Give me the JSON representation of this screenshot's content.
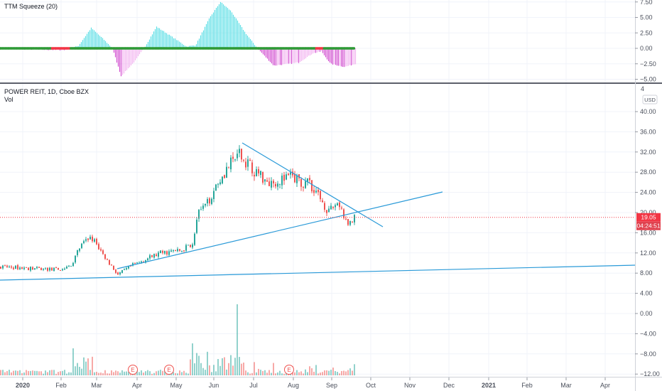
{
  "chart_data": [
    {
      "type": "histogram",
      "title": "TTM Squeeze (20)",
      "ylim": [
        -5.5,
        8.2
      ],
      "yticks": [
        "7.50",
        "5.00",
        "2.50",
        "0.00",
        "−2.50",
        "−5.00"
      ],
      "ytick_values": [
        7.5,
        5,
        2.5,
        0,
        -2.5,
        -5
      ],
      "momentum_profile": [
        [
          0,
          0
        ],
        [
          50,
          -0.2
        ],
        [
          90,
          -0.3
        ],
        [
          110,
          0.4
        ],
        [
          128,
          3.3
        ],
        [
          145,
          1.5
        ],
        [
          158,
          0
        ],
        [
          170,
          -4.5
        ],
        [
          190,
          -2
        ],
        [
          205,
          0.5
        ],
        [
          220,
          3.5
        ],
        [
          240,
          2
        ],
        [
          262,
          0.3
        ],
        [
          275,
          0.5
        ],
        [
          295,
          5
        ],
        [
          310,
          7.5
        ],
        [
          325,
          6
        ],
        [
          345,
          2.5
        ],
        [
          362,
          0
        ],
        [
          385,
          -2.8
        ],
        [
          420,
          -2.3
        ],
        [
          440,
          -0.8
        ],
        [
          452,
          -0.5
        ],
        [
          465,
          -2.5
        ],
        [
          485,
          -3
        ],
        [
          500,
          -2.5
        ]
      ],
      "colors": {
        "positive": "#5fdfe6",
        "negative": "#d24fd0",
        "fading_negative": "#f2b4f0",
        "squeeze_on": "#f23645",
        "squeeze_off": "#2e9a36"
      }
    },
    {
      "type": "candlestick",
      "title": "POWER REIT, 1D, Cboe BZX",
      "subtitle": "Vol",
      "ylim": [
        -12.5,
        42.5
      ],
      "currency": "USD",
      "yticks": [
        "40.00",
        "36.00",
        "32.00",
        "28.00",
        "24.00",
        "20.00",
        "16.00",
        "12.00",
        "8.00",
        "4.00",
        "0.00",
        "−4.00",
        "−8.00",
        "−12.00"
      ],
      "ytick_values": [
        40,
        36,
        32,
        28,
        24,
        20,
        16,
        12,
        8,
        4,
        0,
        -4,
        -8,
        -12
      ],
      "top_partial_tick": "4",
      "last_price": "19.05",
      "countdown": "04:24:51",
      "xticks": [
        "2020",
        "Feb",
        "Mar",
        "Apr",
        "May",
        "Jun",
        "Jul",
        "Aug",
        "Sep",
        "Oct",
        "Nov",
        "Dec",
        "2021",
        "Feb",
        "Mar",
        "Apr"
      ],
      "xtick_bold": [
        "2020",
        "2021"
      ],
      "price_profile": [
        [
          0,
          9.3
        ],
        [
          60,
          8.8
        ],
        [
          85,
          8.7
        ],
        [
          100,
          9.5
        ],
        [
          110,
          12.8
        ],
        [
          127,
          15.4
        ],
        [
          145,
          11.5
        ],
        [
          165,
          7.7
        ],
        [
          185,
          9.5
        ],
        [
          200,
          10.5
        ],
        [
          225,
          12
        ],
        [
          255,
          12.5
        ],
        [
          270,
          14
        ],
        [
          278,
          20
        ],
        [
          290,
          21.5
        ],
        [
          305,
          26
        ],
        [
          320,
          29
        ],
        [
          335,
          31.5
        ],
        [
          345,
          30
        ],
        [
          360,
          28
        ],
        [
          380,
          26
        ],
        [
          410,
          27
        ],
        [
          440,
          25.2
        ],
        [
          462,
          20
        ],
        [
          475,
          22
        ],
        [
          488,
          17.5
        ],
        [
          500,
          19
        ]
      ],
      "earnings_markers": [
        "E",
        "E",
        "E"
      ],
      "colors": {
        "up": "#26a69a",
        "down": "#ef5350",
        "trendline": "#2a9ad8",
        "price_line": "#f23645",
        "countdown_bg": "#e0424f"
      }
    }
  ]
}
